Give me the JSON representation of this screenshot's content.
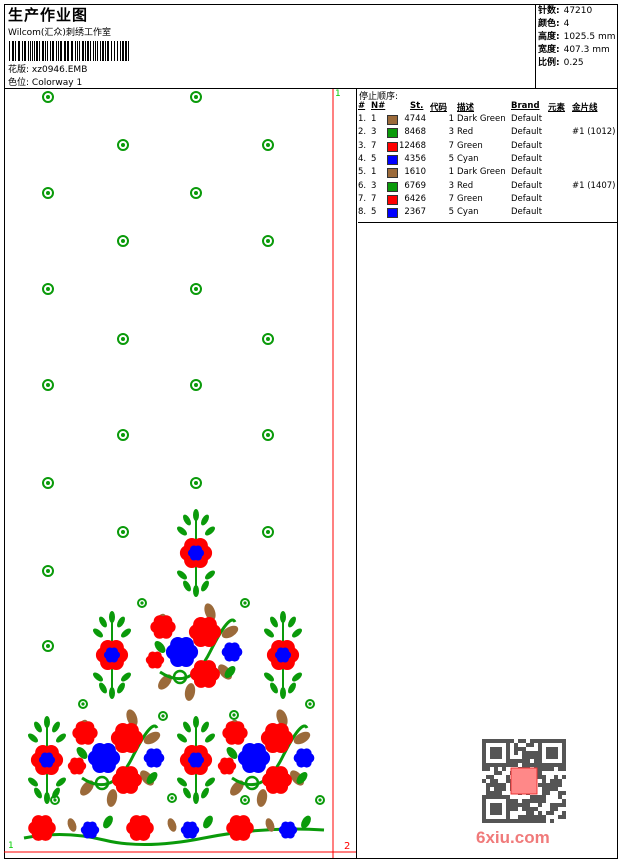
{
  "header": {
    "title": "生产作业图",
    "company": "Wilcom(汇众)刺绣工作室",
    "pattern_label": "花版:",
    "pattern_value": "xz0946.EMB",
    "colorway_label": "色位:",
    "colorway_value": "Colorway 1"
  },
  "info": [
    {
      "label": "针数:",
      "value": "47210"
    },
    {
      "label": "颜色:",
      "value": "4"
    },
    {
      "label": "高度:",
      "value": "1025.5 mm"
    },
    {
      "label": "宽度:",
      "value": "407.3 mm"
    },
    {
      "label": "比例:",
      "value": "0.25"
    }
  ],
  "stop_sequence": {
    "caption": "停止顺序:",
    "columns": [
      "#",
      "N#",
      "St.",
      "代码",
      "描述",
      "Brand",
      "元素",
      "金片线"
    ],
    "rows": [
      {
        "idx": "1.",
        "n": "1",
        "color": "#9b6a3a",
        "st": "4744",
        "code": "1",
        "desc": "Dark Green",
        "brand": "Default",
        "seq": ""
      },
      {
        "idx": "2.",
        "n": "3",
        "color": "#0a9a0a",
        "st": "8468",
        "code": "3",
        "desc": "Red",
        "brand": "Default",
        "seq": "#1 (1012)"
      },
      {
        "idx": "3.",
        "n": "7",
        "color": "#ff0000",
        "st": "12468",
        "code": "7",
        "desc": "Green",
        "brand": "Default",
        "seq": ""
      },
      {
        "idx": "4.",
        "n": "5",
        "color": "#0000ff",
        "st": "4356",
        "code": "5",
        "desc": "Cyan",
        "brand": "Default",
        "seq": ""
      },
      {
        "idx": "5.",
        "n": "1",
        "color": "#9b6a3a",
        "st": "1610",
        "code": "1",
        "desc": "Dark Green",
        "brand": "Default",
        "seq": ""
      },
      {
        "idx": "6.",
        "n": "3",
        "color": "#0a9a0a",
        "st": "6769",
        "code": "3",
        "desc": "Red",
        "brand": "Default",
        "seq": "#1 (1407)"
      },
      {
        "idx": "7.",
        "n": "7",
        "color": "#ff0000",
        "st": "6426",
        "code": "7",
        "desc": "Green",
        "brand": "Default",
        "seq": ""
      },
      {
        "idx": "8.",
        "n": "5",
        "color": "#0000ff",
        "st": "2367",
        "code": "5",
        "desc": "Cyan",
        "brand": "Default",
        "seq": ""
      }
    ]
  },
  "design": {
    "marker_start": "1",
    "marker_top": "1",
    "marker_end": "2",
    "colors": {
      "green": "#0a9a0a",
      "red": "#ff0000",
      "blue": "#0000ff",
      "brown": "#9b6a3a",
      "guide": "#ff0000"
    }
  },
  "watermark": {
    "text": "6xiu.com",
    "stamp": "以图制版"
  }
}
